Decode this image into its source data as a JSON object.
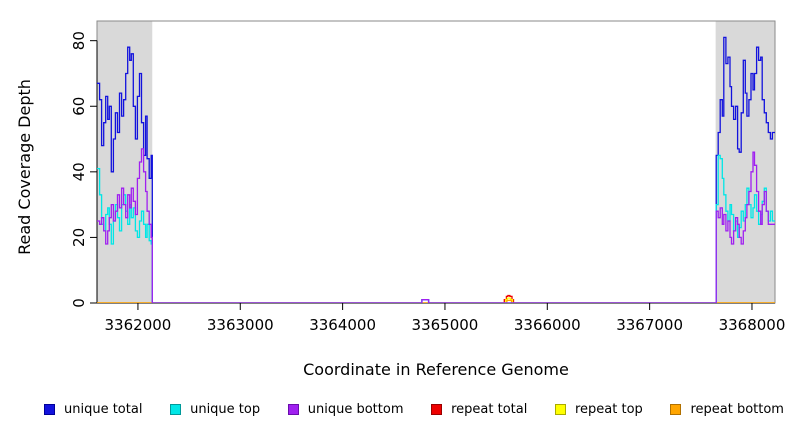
{
  "figure": {
    "background": "#ffffff"
  },
  "legend": {
    "items": [
      {
        "label": "unique total",
        "color": "#1212dd",
        "border": "#000099"
      },
      {
        "label": "unique top",
        "color": "#00e6e6",
        "border": "#009999"
      },
      {
        "label": "unique bottom",
        "color": "#a020f0",
        "border": "#6a0dad"
      },
      {
        "label": "repeat total",
        "color": "#ee0000",
        "border": "#990000"
      },
      {
        "label": "repeat top",
        "color": "#ffff00",
        "border": "#aaaa00"
      },
      {
        "label": "repeat bottom",
        "color": "#ffa500",
        "border": "#b07000"
      }
    ]
  },
  "chart_data": {
    "type": "line",
    "title": "",
    "xlabel": "Coordinate in Reference Genome",
    "ylabel": "Read Coverage Depth",
    "xlim": [
      3361600,
      3368225
    ],
    "ylim": [
      0,
      86
    ],
    "x_ticks": [
      3362000,
      3363000,
      3364000,
      3365000,
      3366000,
      3367000,
      3368000
    ],
    "x_tick_labels": [
      "3362000",
      "3363000",
      "3364000",
      "3365000",
      "3366000",
      "3367000",
      "3368000"
    ],
    "y_ticks": [
      0,
      20,
      40,
      60,
      80
    ],
    "y_tick_labels": [
      "0",
      "20",
      "40",
      "60",
      "80"
    ],
    "grid": false,
    "legend_position": "bottom",
    "frame_color": "#8a8a8a",
    "axis_color": "#000000",
    "shaded_regions": [
      {
        "x0": 3361600,
        "x1": 3362140,
        "color": "#d9d9d9",
        "meaning": "repeat region"
      },
      {
        "x0": 3367645,
        "x1": 3368225,
        "color": "#d9d9d9",
        "meaning": "repeat region"
      }
    ],
    "series": [
      {
        "name": "repeat total",
        "color": "#ee0000",
        "points": [
          [
            3361600,
            0
          ],
          [
            3365565,
            0
          ],
          [
            3365580,
            1
          ],
          [
            3365600,
            2
          ],
          [
            3365615,
            2.3
          ],
          [
            3365635,
            2
          ],
          [
            3365655,
            1
          ],
          [
            3365670,
            0
          ],
          [
            3368225,
            0
          ]
        ]
      },
      {
        "name": "repeat top",
        "color": "#ffff00",
        "points": [
          [
            3361600,
            0
          ],
          [
            3365580,
            0
          ],
          [
            3365595,
            1
          ],
          [
            3365610,
            1.5
          ],
          [
            3365640,
            1
          ],
          [
            3365660,
            0
          ],
          [
            3368225,
            0
          ]
        ]
      },
      {
        "name": "repeat bottom",
        "color": "#ffa500",
        "points": [
          [
            3361600,
            0
          ],
          [
            3365590,
            0
          ],
          [
            3365605,
            0.8
          ],
          [
            3365645,
            0.8
          ],
          [
            3365650,
            0
          ],
          [
            3368225,
            0
          ]
        ]
      },
      {
        "name": "unique total",
        "color": "#1212dd",
        "points": [
          [
            3361600,
            67
          ],
          [
            3361625,
            62
          ],
          [
            3361645,
            48
          ],
          [
            3361665,
            55
          ],
          [
            3361685,
            63
          ],
          [
            3361705,
            56
          ],
          [
            3361720,
            60
          ],
          [
            3361740,
            40
          ],
          [
            3361760,
            50
          ],
          [
            3361780,
            58
          ],
          [
            3361800,
            52
          ],
          [
            3361820,
            64
          ],
          [
            3361840,
            57
          ],
          [
            3361860,
            62
          ],
          [
            3361880,
            70
          ],
          [
            3361900,
            78
          ],
          [
            3361920,
            74
          ],
          [
            3361935,
            76
          ],
          [
            3361955,
            60
          ],
          [
            3361975,
            50
          ],
          [
            3361995,
            63
          ],
          [
            3362015,
            70
          ],
          [
            3362035,
            55
          ],
          [
            3362055,
            45
          ],
          [
            3362075,
            57
          ],
          [
            3362090,
            44
          ],
          [
            3362110,
            38
          ],
          [
            3362130,
            45
          ],
          [
            3362140,
            0
          ],
          [
            3364770,
            0
          ],
          [
            3364775,
            1
          ],
          [
            3364835,
            1
          ],
          [
            3364840,
            0
          ],
          [
            3367645,
            0
          ],
          [
            3367650,
            45
          ],
          [
            3367670,
            52
          ],
          [
            3367690,
            62
          ],
          [
            3367710,
            57
          ],
          [
            3367725,
            81
          ],
          [
            3367745,
            73
          ],
          [
            3367765,
            75
          ],
          [
            3367785,
            66
          ],
          [
            3367800,
            60
          ],
          [
            3367820,
            56
          ],
          [
            3367840,
            60
          ],
          [
            3367860,
            47
          ],
          [
            3367875,
            46
          ],
          [
            3367895,
            58
          ],
          [
            3367915,
            74
          ],
          [
            3367935,
            64
          ],
          [
            3367950,
            57
          ],
          [
            3367970,
            62
          ],
          [
            3367990,
            70
          ],
          [
            3368010,
            65
          ],
          [
            3368025,
            70
          ],
          [
            3368045,
            78
          ],
          [
            3368065,
            74
          ],
          [
            3368085,
            75
          ],
          [
            3368100,
            62
          ],
          [
            3368120,
            58
          ],
          [
            3368140,
            55
          ],
          [
            3368160,
            52
          ],
          [
            3368180,
            50
          ],
          [
            3368200,
            52
          ],
          [
            3368225,
            52
          ]
        ]
      },
      {
        "name": "unique top",
        "color": "#00e6e6",
        "points": [
          [
            3361600,
            41
          ],
          [
            3361625,
            33
          ],
          [
            3361645,
            24
          ],
          [
            3361665,
            22
          ],
          [
            3361685,
            27
          ],
          [
            3361705,
            29
          ],
          [
            3361720,
            24
          ],
          [
            3361740,
            18
          ],
          [
            3361760,
            25
          ],
          [
            3361780,
            30
          ],
          [
            3361800,
            26
          ],
          [
            3361820,
            22
          ],
          [
            3361840,
            30
          ],
          [
            3361860,
            33
          ],
          [
            3361880,
            28
          ],
          [
            3361900,
            24
          ],
          [
            3361920,
            30
          ],
          [
            3361935,
            26
          ],
          [
            3361955,
            29
          ],
          [
            3361975,
            22
          ],
          [
            3361995,
            20
          ],
          [
            3362015,
            25
          ],
          [
            3362035,
            28
          ],
          [
            3362055,
            24
          ],
          [
            3362075,
            20
          ],
          [
            3362090,
            24
          ],
          [
            3362110,
            19
          ],
          [
            3362130,
            18
          ],
          [
            3362140,
            0
          ],
          [
            3364770,
            0
          ],
          [
            3364775,
            1
          ],
          [
            3364835,
            1
          ],
          [
            3364840,
            0
          ],
          [
            3367645,
            0
          ],
          [
            3367650,
            30
          ],
          [
            3367670,
            45
          ],
          [
            3367690,
            44
          ],
          [
            3367710,
            38
          ],
          [
            3367725,
            33
          ],
          [
            3367745,
            28
          ],
          [
            3367765,
            25
          ],
          [
            3367785,
            30
          ],
          [
            3367800,
            27
          ],
          [
            3367820,
            22
          ],
          [
            3367840,
            25
          ],
          [
            3367860,
            20
          ],
          [
            3367875,
            23
          ],
          [
            3367895,
            28
          ],
          [
            3367915,
            25
          ],
          [
            3367935,
            30
          ],
          [
            3367950,
            35
          ],
          [
            3367970,
            30
          ],
          [
            3367990,
            26
          ],
          [
            3368010,
            29
          ],
          [
            3368025,
            33
          ],
          [
            3368045,
            28
          ],
          [
            3368065,
            24
          ],
          [
            3368085,
            27
          ],
          [
            3368100,
            31
          ],
          [
            3368120,
            35
          ],
          [
            3368140,
            28
          ],
          [
            3368160,
            25
          ],
          [
            3368180,
            28
          ],
          [
            3368200,
            25
          ],
          [
            3368225,
            25
          ]
        ]
      },
      {
        "name": "unique bottom",
        "color": "#a020f0",
        "points": [
          [
            3361600,
            25
          ],
          [
            3361625,
            24
          ],
          [
            3361645,
            26
          ],
          [
            3361665,
            22
          ],
          [
            3361685,
            18
          ],
          [
            3361705,
            22
          ],
          [
            3361720,
            26
          ],
          [
            3361740,
            30
          ],
          [
            3361760,
            25
          ],
          [
            3361780,
            28
          ],
          [
            3361800,
            33
          ],
          [
            3361820,
            29
          ],
          [
            3361840,
            35
          ],
          [
            3361860,
            30
          ],
          [
            3361880,
            26
          ],
          [
            3361900,
            33
          ],
          [
            3361920,
            29
          ],
          [
            3361935,
            35
          ],
          [
            3361955,
            31
          ],
          [
            3361975,
            27
          ],
          [
            3361995,
            38
          ],
          [
            3362015,
            43
          ],
          [
            3362035,
            47
          ],
          [
            3362055,
            40
          ],
          [
            3362075,
            34
          ],
          [
            3362090,
            28
          ],
          [
            3362110,
            24
          ],
          [
            3362130,
            20
          ],
          [
            3362140,
            0
          ],
          [
            3364770,
            0
          ],
          [
            3364775,
            1
          ],
          [
            3364835,
            1
          ],
          [
            3364840,
            0
          ],
          [
            3367645,
            0
          ],
          [
            3367650,
            28
          ],
          [
            3367670,
            26
          ],
          [
            3367690,
            29
          ],
          [
            3367710,
            24
          ],
          [
            3367725,
            27
          ],
          [
            3367745,
            22
          ],
          [
            3367765,
            25
          ],
          [
            3367785,
            20
          ],
          [
            3367800,
            18
          ],
          [
            3367820,
            22
          ],
          [
            3367840,
            26
          ],
          [
            3367860,
            24
          ],
          [
            3367875,
            20
          ],
          [
            3367895,
            18
          ],
          [
            3367915,
            22
          ],
          [
            3367935,
            26
          ],
          [
            3367950,
            30
          ],
          [
            3367970,
            34
          ],
          [
            3367990,
            40
          ],
          [
            3368010,
            46
          ],
          [
            3368025,
            42
          ],
          [
            3368045,
            34
          ],
          [
            3368065,
            28
          ],
          [
            3368085,
            24
          ],
          [
            3368100,
            30
          ],
          [
            3368120,
            34
          ],
          [
            3368140,
            28
          ],
          [
            3368160,
            24
          ],
          [
            3368180,
            24
          ],
          [
            3368200,
            24
          ],
          [
            3368225,
            24
          ]
        ]
      }
    ]
  }
}
